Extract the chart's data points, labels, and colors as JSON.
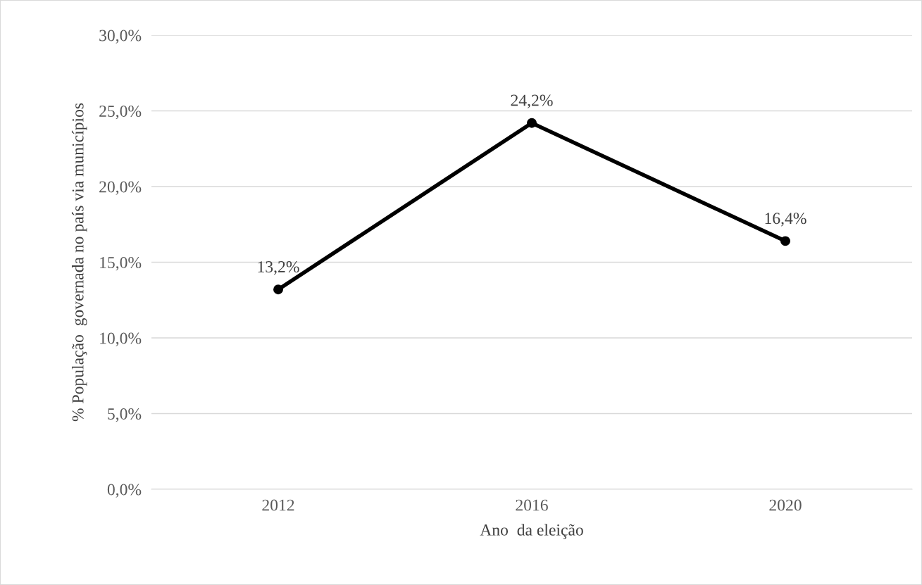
{
  "chart_data": {
    "type": "line",
    "xlabel": "Ano  da eleição",
    "ylabel": "% População  governada no país via municípios",
    "categories": [
      "2012",
      "2016",
      "2020"
    ],
    "series": [
      {
        "color": "#000000",
        "values": [
          13.2,
          24.2,
          16.4
        ],
        "value_labels": [
          "13,2%",
          "24,2%",
          "16,4%"
        ]
      }
    ],
    "ylim": [
      0,
      30
    ],
    "yticks": [
      {
        "value": 0,
        "label": "0,0%"
      },
      {
        "value": 5,
        "label": "5,0%"
      },
      {
        "value": 10,
        "label": "10,0%"
      },
      {
        "value": 15,
        "label": "15,0%"
      },
      {
        "value": 20,
        "label": "20,0%"
      },
      {
        "value": 25,
        "label": "25,0%"
      },
      {
        "value": 30,
        "label": "30,0%"
      }
    ],
    "grid": "y",
    "marker": "circle",
    "line_style": "solid",
    "legend": false
  }
}
